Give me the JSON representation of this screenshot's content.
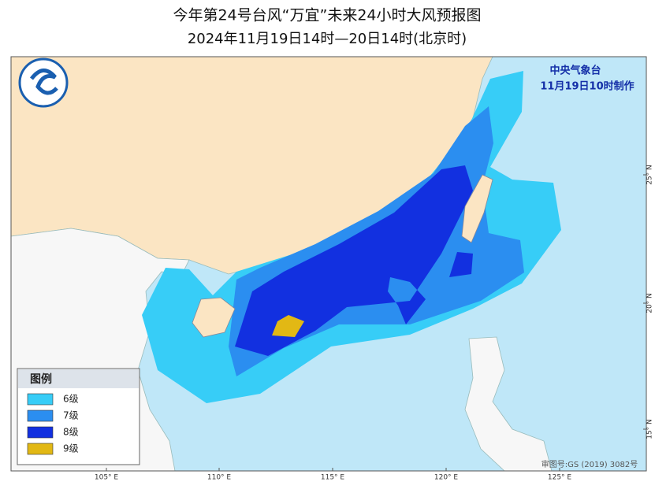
{
  "header": {
    "title": "今年第24号台风“万宜”未来24小时大风预报图",
    "subtitle": "2024年11月19日14时—20日14时(北京时)"
  },
  "map": {
    "agency": "中央气象台",
    "issue_time": "11月19日10时制作",
    "longitude_labels": [
      "105° E",
      "110° E",
      "115° E",
      "120° E",
      "125° E"
    ],
    "latitude_labels": [
      "25° N",
      "20° N",
      "15° N"
    ],
    "credit": "审图号:GS (2019) 3082号"
  },
  "legend": {
    "title": "图例",
    "items": [
      {
        "label": "6级",
        "color": "#37cdf7"
      },
      {
        "label": "7级",
        "color": "#2b8ef0"
      },
      {
        "label": "8级",
        "color": "#1230e0"
      },
      {
        "label": "9级",
        "color": "#e2b814"
      }
    ]
  }
}
